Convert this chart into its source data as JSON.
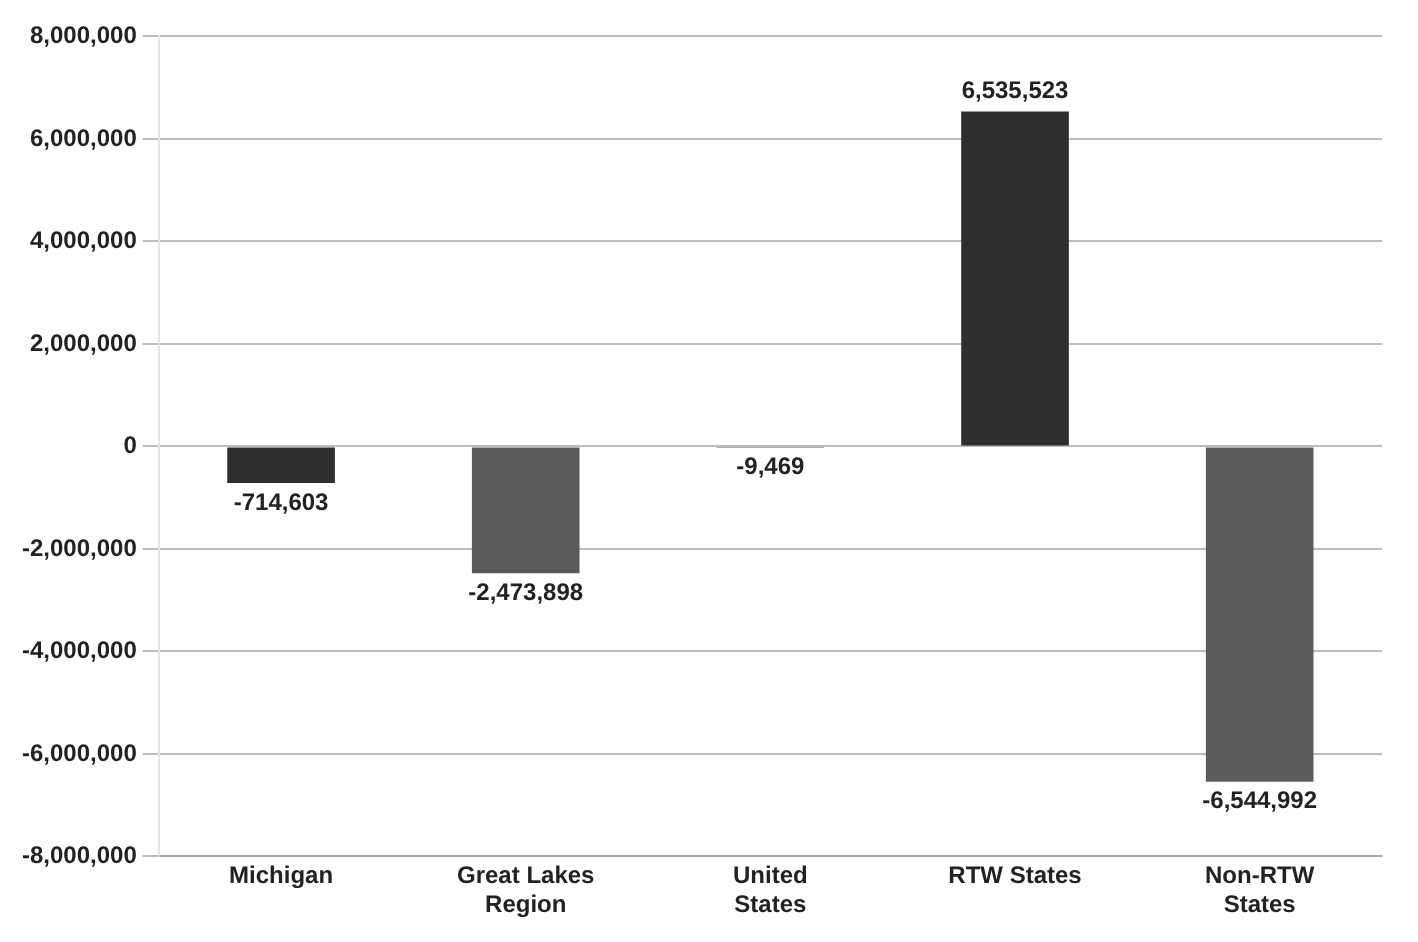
{
  "chart_data": {
    "type": "bar",
    "categories": [
      "Michigan",
      "Great Lakes Region",
      "United States",
      "RTW States",
      "Non-RTW States"
    ],
    "values": [
      -714603,
      -2473898,
      -9469,
      6535523,
      -6544992
    ],
    "colors": [
      "#2e2e2e",
      "#5c5c5c",
      "#5c5c5c",
      "#2e2e2e",
      "#5c5c5c"
    ],
    "value_labels": [
      "-714,603",
      "-2,473,898",
      "-9,469",
      "6,535,523",
      "-6,544,992"
    ],
    "ylim": [
      -8000000,
      8000000
    ],
    "yticks": [
      {
        "value": -8000000,
        "label": "-8,000,000"
      },
      {
        "value": -6000000,
        "label": "-6,000,000"
      },
      {
        "value": -4000000,
        "label": "-4,000,000"
      },
      {
        "value": -2000000,
        "label": "-2,000,000"
      },
      {
        "value": 0,
        "label": "0"
      },
      {
        "value": 2000000,
        "label": "2,000,000"
      },
      {
        "value": 4000000,
        "label": "4,000,000"
      },
      {
        "value": 6000000,
        "label": "6,000,000"
      },
      {
        "value": 8000000,
        "label": "8,000,000"
      }
    ],
    "grid": "y",
    "legend": false
  }
}
